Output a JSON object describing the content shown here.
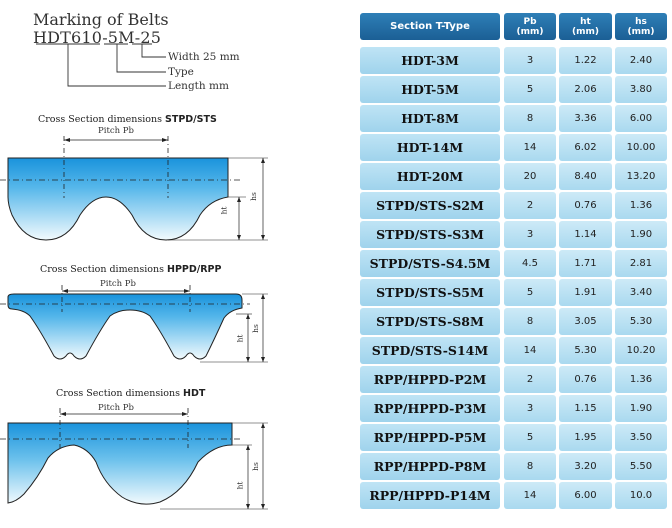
{
  "marking": {
    "title": "Marking of Belts",
    "code": "HDT610-5M-25",
    "width_label": "Width 25 mm",
    "type_label": "Type",
    "length_label": "Length mm"
  },
  "sections": [
    {
      "prefix": "Cross Section dimensions",
      "name": "STPD/STS",
      "pitch": "Pitch Pb",
      "ht": "ht",
      "hs": "hs"
    },
    {
      "prefix": "Cross Section dimensions",
      "name": "HPPD/RPP",
      "pitch": "Pitch Pb",
      "ht": "ht",
      "hs": "hs"
    },
    {
      "prefix": "Cross Section dimensions",
      "name": "HDT",
      "pitch": "Pitch Pb",
      "ht": "ht",
      "hs": "hs"
    }
  ],
  "table": {
    "headers": [
      {
        "line1": "Section T-Type",
        "line2": ""
      },
      {
        "line1": "Pb",
        "line2": "(mm)"
      },
      {
        "line1": "ht",
        "line2": "(mm)"
      },
      {
        "line1": "hs",
        "line2": "(mm)"
      }
    ],
    "rows": [
      [
        "HDT-3M",
        "3",
        "1.22",
        "2.40"
      ],
      [
        "HDT-5M",
        "5",
        "2.06",
        "3.80"
      ],
      [
        "HDT-8M",
        "8",
        "3.36",
        "6.00"
      ],
      [
        "HDT-14M",
        "14",
        "6.02",
        "10.00"
      ],
      [
        "HDT-20M",
        "20",
        "8.40",
        "13.20"
      ],
      [
        "STPD/STS-S2M",
        "2",
        "0.76",
        "1.36"
      ],
      [
        "STPD/STS-S3M",
        "3",
        "1.14",
        "1.90"
      ],
      [
        "STPD/STS-S4.5M",
        "4.5",
        "1.71",
        "2.81"
      ],
      [
        "STPD/STS-S5M",
        "5",
        "1.91",
        "3.40"
      ],
      [
        "STPD/STS-S8M",
        "8",
        "3.05",
        "5.30"
      ],
      [
        "STPD/STS-S14M",
        "14",
        "5.30",
        "10.20"
      ],
      [
        "RPP/HPPD-P2M",
        "2",
        "0.76",
        "1.36"
      ],
      [
        "RPP/HPPD-P3M",
        "3",
        "1.15",
        "1.90"
      ],
      [
        "RPP/HPPD-P5M",
        "5",
        "1.95",
        "3.50"
      ],
      [
        "RPP/HPPD-P8M",
        "8",
        "3.20",
        "5.50"
      ],
      [
        "RPP/HPPD-P14M",
        "14",
        "6.00",
        "10.0"
      ]
    ]
  },
  "colors": {
    "belt_top": "#1e9be0",
    "belt_bottom": "#e8f6fc",
    "header": "#1b5f95",
    "cell": "#b8e0f2"
  }
}
